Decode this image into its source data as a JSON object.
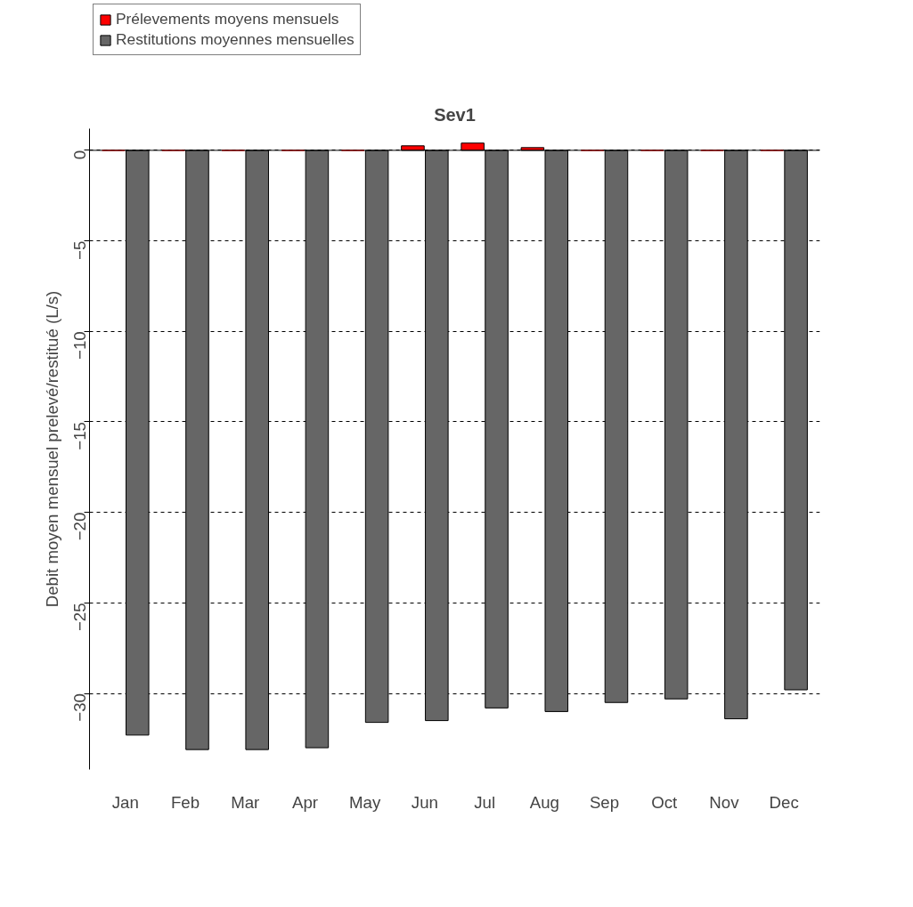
{
  "chart_data": {
    "type": "bar",
    "title": "Sev1",
    "ylabel": "Debit moyen mensuel prelevé/restitué (L/s)",
    "categories": [
      "Jan",
      "Feb",
      "Mar",
      "Apr",
      "May",
      "Jun",
      "Jul",
      "Aug",
      "Sep",
      "Oct",
      "Nov",
      "Dec"
    ],
    "series": [
      {
        "name": "Prélevements moyens mensuels",
        "color": "#ff0000",
        "values": [
          0,
          0,
          0,
          0,
          0,
          0.25,
          0.4,
          0.15,
          0,
          0,
          0,
          0
        ]
      },
      {
        "name": "Restitutions moyennes mensuelles",
        "color": "#666666",
        "values": [
          -32.3,
          -33.1,
          -33.1,
          -33.0,
          -31.6,
          -31.5,
          -30.8,
          -31.0,
          -30.5,
          -30.3,
          -31.4,
          -29.8
        ]
      }
    ],
    "ylim": [
      -34.2,
      1.2
    ],
    "yticks": [
      0,
      -5,
      -10,
      -15,
      -20,
      -25,
      -30
    ],
    "ref_lines": [
      {
        "axis": "y",
        "value": 0
      }
    ],
    "grid": "y",
    "legend": "top left"
  }
}
